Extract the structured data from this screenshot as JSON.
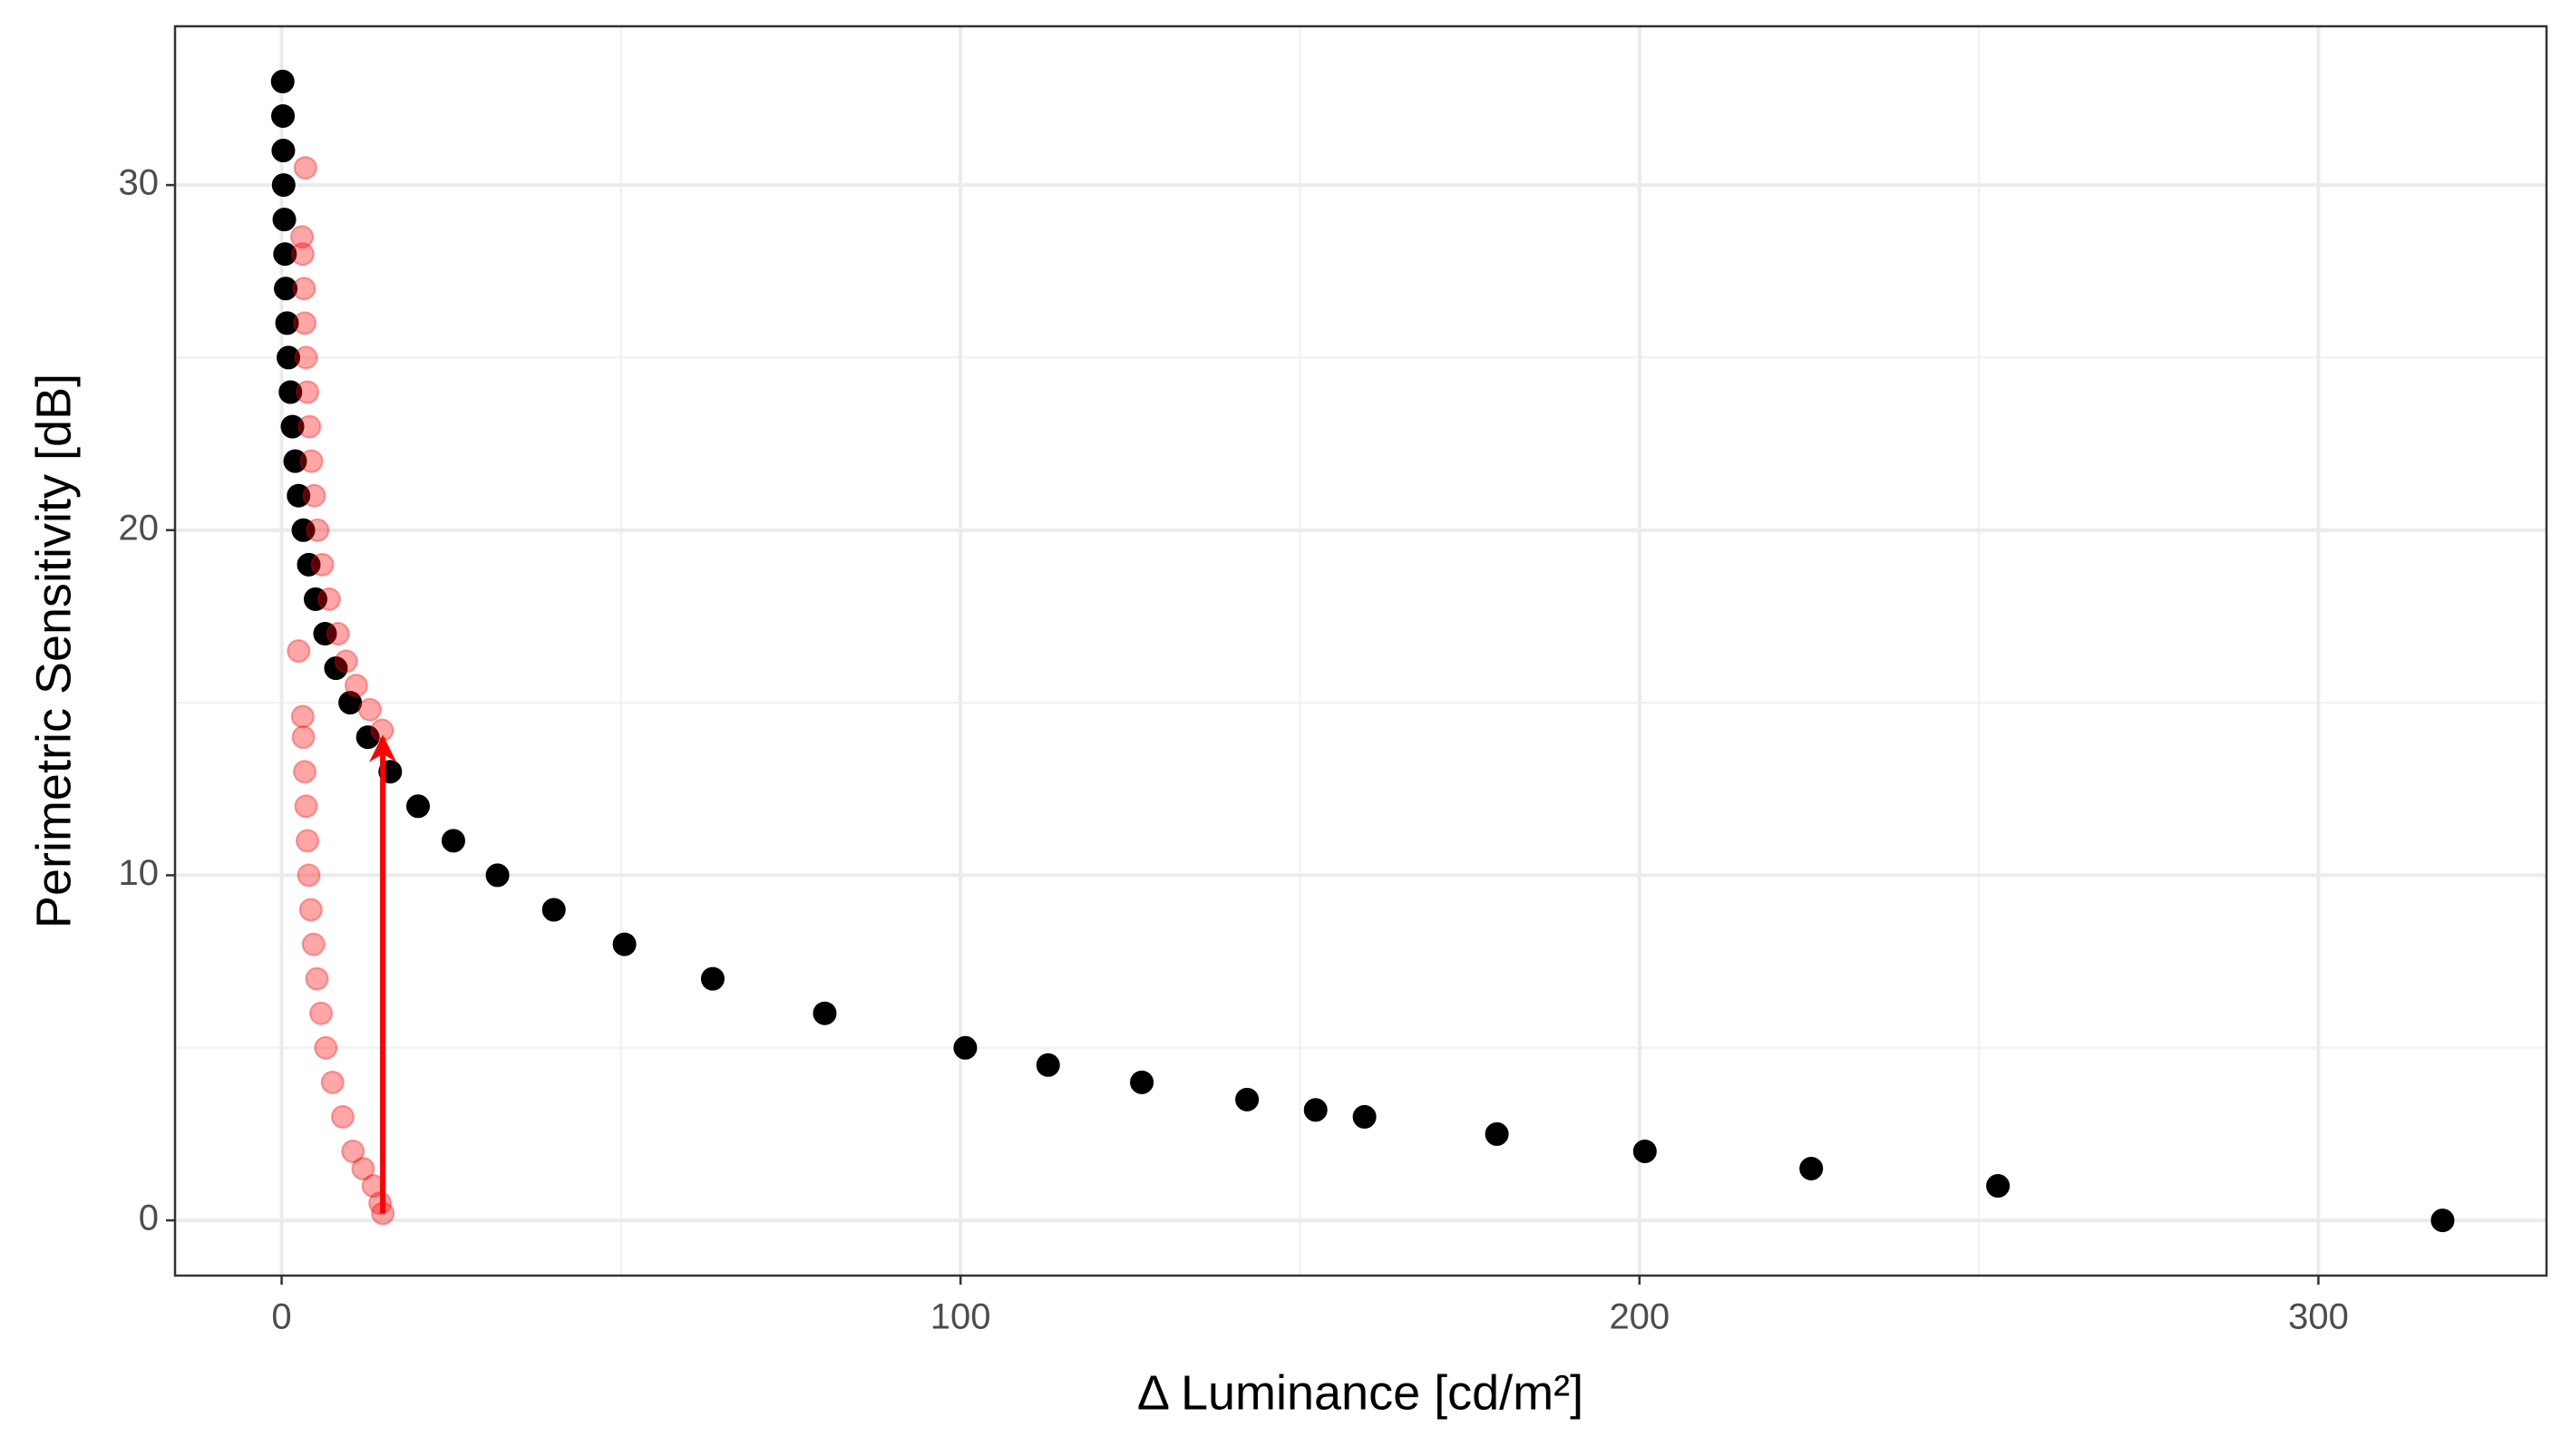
{
  "chart_data": {
    "type": "scatter",
    "x_label": "Δ Luminance [cd/m²]",
    "y_label": "Perimetric Sensitivity [dB]",
    "xlim": [
      -15.7,
      333.6
    ],
    "ylim": [
      -1.6,
      34.6
    ],
    "xticks": [
      0,
      100,
      200,
      300
    ],
    "yticks": [
      0,
      10,
      20,
      30
    ],
    "x_minor_grid": [
      50,
      150,
      250
    ],
    "y_minor_grid": [
      5,
      15,
      25
    ],
    "grid": true,
    "series": [
      {
        "color": "#000000",
        "opacity": 1,
        "x": [
          318.3,
          252.8,
          225.3,
          200.8,
          179.0,
          159.5,
          152.3,
          142.2,
          126.7,
          112.9,
          100.7,
          80.0,
          63.5,
          50.5,
          40.1,
          31.8,
          25.3,
          20.1,
          16.0,
          12.7,
          10.1,
          8.0,
          6.4,
          5.0,
          4.0,
          3.2,
          2.5,
          2.0,
          1.6,
          1.3,
          1.0,
          0.8,
          0.6,
          0.5,
          0.4,
          0.3,
          0.25,
          0.2,
          0.16
        ],
        "y": [
          0,
          1,
          1.5,
          2,
          2.5,
          3,
          3.2,
          3.5,
          4,
          4.5,
          5,
          6,
          7,
          8,
          9,
          10,
          11,
          12,
          13,
          14,
          15,
          16,
          17,
          18,
          19,
          20,
          21,
          22,
          23,
          24,
          25,
          26,
          27,
          28,
          29,
          30,
          31,
          32,
          33
        ]
      },
      {
        "color": "#ff0000",
        "opacity": 0.35,
        "x": [
          14.9,
          14.5,
          13.5,
          12.0,
          10.5,
          9.0,
          7.5,
          6.5,
          5.8,
          5.2,
          4.7,
          4.3,
          4.0,
          3.8,
          3.6,
          3.4,
          3.2,
          3.1,
          2.5
        ],
        "y": [
          0.2,
          0.5,
          1,
          1.5,
          2,
          3,
          4,
          5,
          6,
          7,
          8,
          9,
          10,
          11,
          12,
          13,
          14,
          14.6,
          16.5
        ]
      },
      {
        "color": "#ff0000",
        "opacity": 0.35,
        "x": [
          14.8,
          13.0,
          11.0,
          9.5,
          8.3,
          7.0,
          6.0,
          5.3,
          4.8,
          4.4,
          4.1,
          3.8,
          3.6,
          3.4,
          3.3,
          3.1,
          3.0,
          3.5
        ],
        "y": [
          14.2,
          14.8,
          15.5,
          16.2,
          17,
          18,
          19,
          20,
          21,
          22,
          23,
          24,
          25,
          26,
          27,
          28,
          28.5,
          30.5
        ]
      }
    ]
  }
}
